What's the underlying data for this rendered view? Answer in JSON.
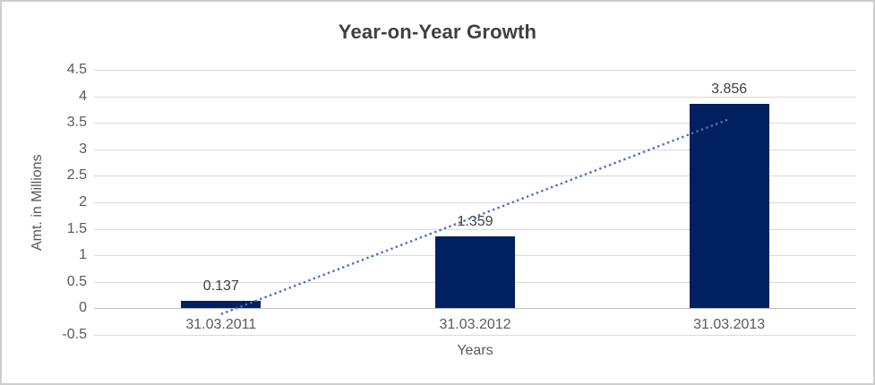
{
  "frame": {
    "background": "#ffffff",
    "border_color": "#cdcdcd"
  },
  "chart_data": {
    "type": "bar",
    "title": "Year-on-Year Growth",
    "xlabel": "Years",
    "ylabel": "Amt. in Millions",
    "categories": [
      "31.03.2011",
      "31.03.2012",
      "31.03.2013"
    ],
    "values": [
      0.137,
      1.359,
      3.856
    ],
    "data_labels": [
      "0.137",
      "1.359",
      "3.856"
    ],
    "ylim": [
      -0.5,
      4.5
    ],
    "ytick_step": 0.5,
    "yticks": [
      4.5,
      4,
      3.5,
      3,
      2.5,
      2,
      1.5,
      1,
      0.5,
      0,
      -0.5
    ],
    "grid": true,
    "legend": "none",
    "bar_color": "#002060",
    "trendline": {
      "type": "linear",
      "style": "dotted",
      "color": "#4472c4",
      "start": {
        "category_index": 0,
        "value": -0.11
      },
      "end": {
        "category_index": 2,
        "value": 3.57
      }
    },
    "colors": {
      "gridline": "#d9d9d9",
      "axis_line": "#bfbfbf",
      "tick_label": "#595959",
      "axis_title": "#595959",
      "title": "#404040",
      "data_label": "#404040"
    }
  }
}
